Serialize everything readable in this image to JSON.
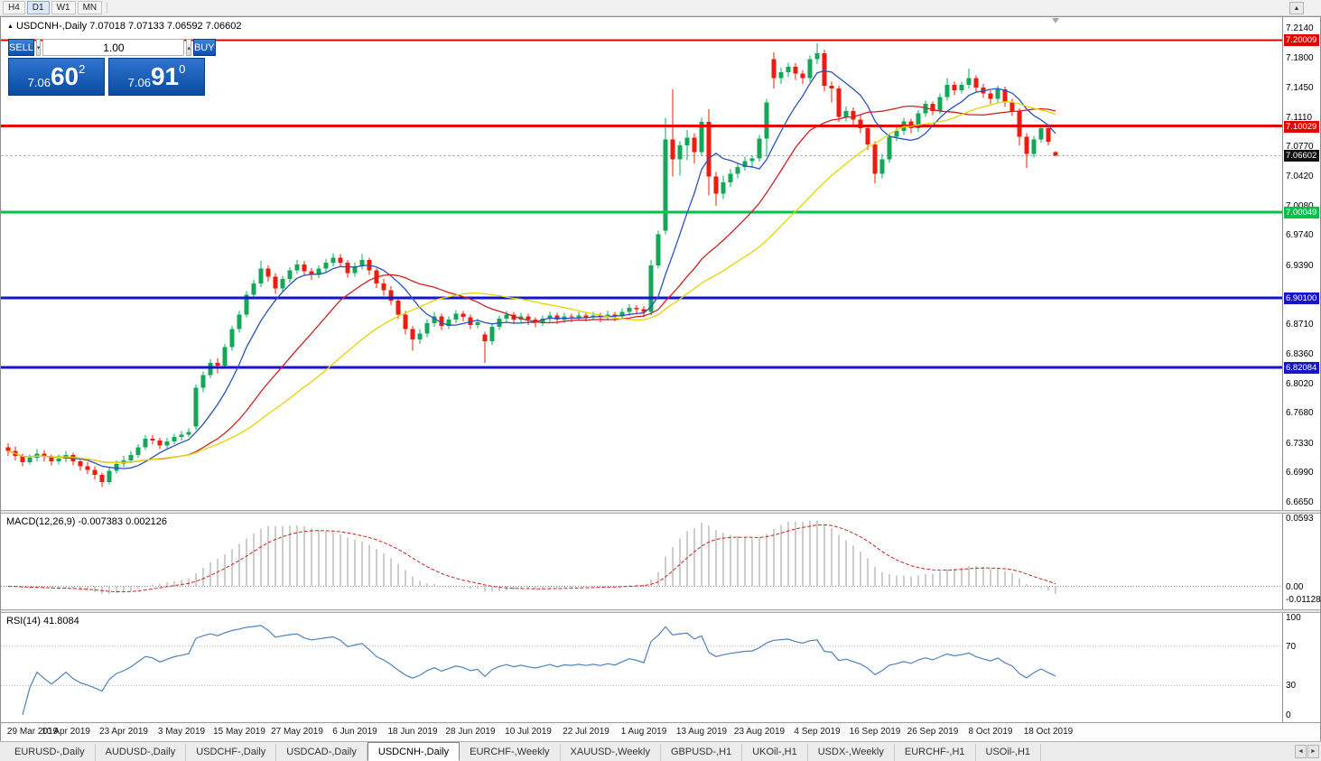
{
  "toolbar": {
    "timeframes": [
      {
        "label": "H4",
        "active": false
      },
      {
        "label": "D1",
        "active": true
      },
      {
        "label": "W1",
        "active": false
      },
      {
        "label": "MN",
        "active": false
      }
    ],
    "up_button": "▲"
  },
  "chart_header": {
    "marker": "▲",
    "title": "USDCNH-,Daily",
    "ohlc": "7.07018 7.07133 7.06592 7.06602"
  },
  "one_click": {
    "sell_label": "SELL",
    "buy_label": "BUY",
    "volume": "1.00",
    "spin_down": "▾",
    "spin_up": "▴",
    "sell_price": {
      "prefix": "7.06",
      "big": "60",
      "sup": "2"
    },
    "buy_price": {
      "prefix": "7.06",
      "big": "91",
      "sup": "0"
    }
  },
  "price_scale": {
    "ticks": [
      "7.2140",
      "7.1800",
      "7.1450",
      "7.1110",
      "7.0770",
      "7.0420",
      "7.0080",
      "6.9740",
      "6.9390",
      "6.8710",
      "6.8360",
      "6.8020",
      "6.7680",
      "6.7330",
      "6.6990",
      "6.6650"
    ],
    "badges": [
      {
        "text": "7.20009",
        "value": 7.20009,
        "bg": "#e60000",
        "kind": "level"
      },
      {
        "text": "7.10029",
        "value": 7.10029,
        "bg": "#e60000",
        "kind": "level"
      },
      {
        "text": "7.06602",
        "value": 7.06602,
        "bg": "#111111",
        "kind": "current"
      },
      {
        "text": "7.00049",
        "value": 7.00049,
        "bg": "#00c24a",
        "kind": "level"
      },
      {
        "text": "6.90100",
        "value": 6.901,
        "bg": "#1414cc",
        "kind": "level"
      },
      {
        "text": "6.82084",
        "value": 6.82084,
        "bg": "#1414cc",
        "kind": "level"
      }
    ]
  },
  "date_axis": [
    {
      "label": "29 Mar 2019",
      "index": 0
    },
    {
      "label": "10 Apr 2019",
      "index": 8
    },
    {
      "label": "23 Apr 2019",
      "index": 16
    },
    {
      "label": "3 May 2019",
      "index": 24
    },
    {
      "label": "15 May 2019",
      "index": 32
    },
    {
      "label": "27 May 2019",
      "index": 40
    },
    {
      "label": "6 Jun 2019",
      "index": 48
    },
    {
      "label": "18 Jun 2019",
      "index": 56
    },
    {
      "label": "28 Jun 2019",
      "index": 64
    },
    {
      "label": "10 Jul 2019",
      "index": 72
    },
    {
      "label": "22 Jul 2019",
      "index": 80
    },
    {
      "label": "1 Aug 2019",
      "index": 88
    },
    {
      "label": "13 Aug 2019",
      "index": 96
    },
    {
      "label": "23 Aug 2019",
      "index": 104
    },
    {
      "label": "4 Sep 2019",
      "index": 112
    },
    {
      "label": "16 Sep 2019",
      "index": 120
    },
    {
      "label": "26 Sep 2019",
      "index": 128
    },
    {
      "label": "8 Oct 2019",
      "index": 136
    },
    {
      "label": "18 Oct 2019",
      "index": 144
    }
  ],
  "tabs": {
    "items": [
      {
        "label": "EURUSD-,Daily",
        "active": false
      },
      {
        "label": "AUDUSD-,Daily",
        "active": false
      },
      {
        "label": "USDCHF-,Daily",
        "active": false
      },
      {
        "label": "USDCAD-,Daily",
        "active": false
      },
      {
        "label": "USDCNH-,Daily",
        "active": true
      },
      {
        "label": "EURCHF-,Weekly",
        "active": false
      },
      {
        "label": "XAUUSD-,Weekly",
        "active": false
      },
      {
        "label": "GBPUSD-,H1",
        "active": false
      },
      {
        "label": "UKOil-,H1",
        "active": false
      },
      {
        "label": "USDX-,Weekly",
        "active": false
      },
      {
        "label": "EURCHF-,H1",
        "active": false
      },
      {
        "label": "USOil-,H1",
        "active": false
      }
    ],
    "scroll_left": "◄",
    "scroll_right": "►"
  },
  "chart_data": {
    "type": "candlestick",
    "symbol": "USDCNH-",
    "timeframe": "Daily",
    "ohlc_current": {
      "open": 7.07018,
      "high": 7.07133,
      "low": 7.06592,
      "close": 7.06602
    },
    "price_range": {
      "top": 7.2266,
      "bottom": 6.6554
    },
    "bull_color": "#0fa958",
    "bear_color": "#ee1c0c",
    "bid_line": {
      "price": 7.06602,
      "color": "#b8b8b8"
    },
    "levels": [
      {
        "price": 7.20009,
        "color": "#e60000",
        "width": 2
      },
      {
        "price": 7.10029,
        "color": "#e60000",
        "width": 3
      },
      {
        "price": 7.00049,
        "color": "#00c24a",
        "width": 3
      },
      {
        "price": 6.901,
        "color": "#1414cc",
        "width": 3
      },
      {
        "price": 6.82084,
        "color": "#1414cc",
        "width": 3
      }
    ],
    "moving_averages": [
      {
        "period": 8,
        "color": "#2a52be"
      },
      {
        "period": 21,
        "color": "#d02020"
      },
      {
        "period": 34,
        "color": "#e6d500"
      }
    ],
    "indicators": {
      "macd": {
        "label": "MACD(12,26,9)",
        "values_text": "-0.007383 0.002126",
        "fast": 12,
        "slow": 26,
        "signal": 9,
        "range": {
          "max": 0.0593,
          "min": -0.011289
        },
        "axis": [
          {
            "text": "0.0593",
            "v": 0.0593
          },
          {
            "text": "0.00",
            "v": 0
          },
          {
            "text": "-0.011289",
            "v": -0.011289
          }
        ],
        "hist_color": "#9e9e9e",
        "signal_color": "#d02020"
      },
      "rsi": {
        "label": "RSI(14)",
        "value_text": "41.8084",
        "period": 14,
        "levels": [
          70,
          30
        ],
        "axis": [
          {
            "text": "100",
            "v": 100
          },
          {
            "text": "70",
            "v": 70
          },
          {
            "text": "30",
            "v": 30
          },
          {
            "text": "0",
            "v": 0
          }
        ],
        "color": "#4f81bd"
      }
    },
    "candles": [
      [
        6.728,
        6.733,
        6.718,
        6.724
      ],
      [
        6.724,
        6.729,
        6.713,
        6.718
      ],
      [
        6.718,
        6.721,
        6.706,
        6.711
      ],
      [
        6.711,
        6.72,
        6.708,
        6.716
      ],
      [
        6.716,
        6.726,
        6.712,
        6.721
      ],
      [
        6.721,
        6.725,
        6.712,
        6.717
      ],
      [
        6.717,
        6.72,
        6.707,
        6.712
      ],
      [
        6.712,
        6.72,
        6.708,
        6.715
      ],
      [
        6.715,
        6.724,
        6.711,
        6.719
      ],
      [
        6.719,
        6.722,
        6.707,
        6.712
      ],
      [
        6.712,
        6.716,
        6.701,
        6.706
      ],
      [
        6.706,
        6.711,
        6.697,
        6.702
      ],
      [
        6.702,
        6.706,
        6.691,
        6.696
      ],
      [
        6.696,
        6.699,
        6.682,
        6.688
      ],
      [
        6.688,
        6.705,
        6.685,
        6.701
      ],
      [
        6.701,
        6.713,
        6.698,
        6.709
      ],
      [
        6.709,
        6.718,
        6.705,
        6.713
      ],
      [
        6.713,
        6.724,
        6.71,
        6.719
      ],
      [
        6.719,
        6.732,
        6.716,
        6.728
      ],
      [
        6.728,
        6.742,
        6.725,
        6.738
      ],
      [
        6.738,
        6.742,
        6.731,
        6.736
      ],
      [
        6.736,
        6.739,
        6.726,
        6.73
      ],
      [
        6.73,
        6.739,
        6.727,
        6.735
      ],
      [
        6.735,
        6.744,
        6.732,
        6.74
      ],
      [
        6.74,
        6.747,
        6.736,
        6.743
      ],
      [
        6.743,
        6.75,
        6.74,
        6.746
      ],
      [
        6.752,
        6.801,
        6.748,
        6.797
      ],
      [
        6.797,
        6.816,
        6.792,
        6.812
      ],
      [
        6.812,
        6.83,
        6.808,
        6.826
      ],
      [
        6.826,
        6.831,
        6.814,
        6.823
      ],
      [
        6.823,
        6.848,
        6.819,
        6.844
      ],
      [
        6.844,
        6.869,
        6.84,
        6.865
      ],
      [
        6.865,
        6.886,
        6.861,
        6.882
      ],
      [
        6.882,
        6.909,
        6.879,
        6.905
      ],
      [
        6.905,
        6.922,
        6.9,
        6.918
      ],
      [
        6.918,
        6.944,
        6.914,
        6.935
      ],
      [
        6.935,
        6.939,
        6.92,
        6.926
      ],
      [
        6.926,
        6.93,
        6.906,
        6.912
      ],
      [
        6.912,
        6.927,
        6.908,
        6.923
      ],
      [
        6.923,
        6.937,
        6.919,
        6.933
      ],
      [
        6.933,
        6.945,
        6.929,
        6.94
      ],
      [
        6.94,
        6.944,
        6.927,
        6.932
      ],
      [
        6.932,
        6.936,
        6.922,
        6.928
      ],
      [
        6.928,
        6.939,
        6.924,
        6.935
      ],
      [
        6.935,
        6.946,
        6.931,
        6.942
      ],
      [
        6.942,
        6.953,
        6.938,
        6.948
      ],
      [
        6.948,
        6.952,
        6.937,
        6.942
      ],
      [
        6.942,
        6.945,
        6.925,
        6.93
      ],
      [
        6.93,
        6.942,
        6.926,
        6.938
      ],
      [
        6.938,
        6.952,
        6.934,
        6.945
      ],
      [
        6.945,
        6.948,
        6.928,
        6.933
      ],
      [
        6.933,
        6.936,
        6.913,
        6.918
      ],
      [
        6.918,
        6.923,
        6.904,
        6.91
      ],
      [
        6.91,
        6.915,
        6.893,
        6.898
      ],
      [
        6.898,
        6.902,
        6.877,
        6.882
      ],
      [
        6.882,
        6.886,
        6.859,
        6.865
      ],
      [
        6.865,
        6.869,
        6.84,
        6.853
      ],
      [
        6.853,
        6.865,
        6.848,
        6.86
      ],
      [
        6.86,
        6.876,
        6.856,
        6.872
      ],
      [
        6.872,
        6.885,
        6.868,
        6.88
      ],
      [
        6.88,
        6.883,
        6.864,
        6.869
      ],
      [
        6.869,
        6.88,
        6.865,
        6.876
      ],
      [
        6.876,
        6.887,
        6.872,
        6.883
      ],
      [
        6.883,
        6.886,
        6.874,
        6.879
      ],
      [
        6.879,
        6.882,
        6.865,
        6.87
      ],
      [
        6.87,
        6.877,
        6.866,
        6.873
      ],
      [
        6.859,
        6.862,
        6.826,
        6.851
      ],
      [
        6.851,
        6.872,
        6.847,
        6.868
      ],
      [
        6.868,
        6.881,
        6.864,
        6.877
      ],
      [
        6.877,
        6.886,
        6.873,
        6.882
      ],
      [
        6.882,
        6.885,
        6.871,
        6.876
      ],
      [
        6.876,
        6.884,
        6.872,
        6.88
      ],
      [
        6.88,
        6.883,
        6.87,
        6.876
      ],
      [
        6.876,
        6.879,
        6.867,
        6.873
      ],
      [
        6.873,
        6.881,
        6.869,
        6.877
      ],
      [
        6.877,
        6.885,
        6.873,
        6.881
      ],
      [
        6.881,
        6.884,
        6.871,
        6.876
      ],
      [
        6.876,
        6.884,
        6.872,
        6.88
      ],
      [
        6.88,
        6.883,
        6.873,
        6.879
      ],
      [
        6.879,
        6.885,
        6.875,
        6.881
      ],
      [
        6.881,
        6.884,
        6.874,
        6.879
      ],
      [
        6.879,
        6.885,
        6.875,
        6.881
      ],
      [
        6.881,
        6.884,
        6.873,
        6.879
      ],
      [
        6.879,
        6.886,
        6.875,
        6.882
      ],
      [
        6.882,
        6.885,
        6.874,
        6.88
      ],
      [
        6.88,
        6.889,
        6.876,
        6.885
      ],
      [
        6.885,
        6.894,
        6.881,
        6.89
      ],
      [
        6.89,
        6.893,
        6.882,
        6.888
      ],
      [
        6.888,
        6.892,
        6.879,
        6.885
      ],
      [
        6.885,
        6.945,
        6.881,
        6.939
      ],
      [
        6.939,
        6.979,
        6.935,
        6.975
      ],
      [
        6.979,
        7.11,
        6.975,
        7.085
      ],
      [
        7.085,
        7.143,
        7.042,
        7.062
      ],
      [
        7.062,
        7.083,
        7.043,
        7.078
      ],
      [
        7.078,
        7.096,
        7.061,
        7.087
      ],
      [
        7.087,
        7.092,
        7.057,
        7.07
      ],
      [
        7.07,
        7.11,
        7.066,
        7.105
      ],
      [
        7.105,
        7.12,
        7.02,
        7.042
      ],
      [
        7.042,
        7.047,
        7.008,
        7.022
      ],
      [
        7.022,
        7.043,
        7.016,
        7.035
      ],
      [
        7.035,
        7.051,
        7.03,
        7.045
      ],
      [
        7.045,
        7.058,
        7.04,
        7.053
      ],
      [
        7.053,
        7.065,
        7.049,
        7.06
      ],
      [
        7.06,
        7.066,
        7.052,
        7.063
      ],
      [
        7.063,
        7.09,
        7.059,
        7.086
      ],
      [
        7.086,
        7.132,
        7.065,
        7.128
      ],
      [
        7.178,
        7.186,
        7.144,
        7.156
      ],
      [
        7.156,
        7.168,
        7.149,
        7.163
      ],
      [
        7.163,
        7.174,
        7.157,
        7.169
      ],
      [
        7.169,
        7.173,
        7.154,
        7.161
      ],
      [
        7.161,
        7.165,
        7.149,
        7.156
      ],
      [
        7.156,
        7.182,
        7.152,
        7.178
      ],
      [
        7.178,
        7.1965,
        7.172,
        7.185
      ],
      [
        7.185,
        7.189,
        7.141,
        7.147
      ],
      [
        7.147,
        7.152,
        7.128,
        7.144
      ],
      [
        7.144,
        7.147,
        7.105,
        7.111
      ],
      [
        7.111,
        7.123,
        7.106,
        7.118
      ],
      [
        7.118,
        7.122,
        7.102,
        7.108
      ],
      [
        7.108,
        7.113,
        7.092,
        7.098
      ],
      [
        7.098,
        7.102,
        7.073,
        7.079
      ],
      [
        7.079,
        7.083,
        7.034,
        7.045
      ],
      [
        7.045,
        7.068,
        7.04,
        7.062
      ],
      [
        7.062,
        7.092,
        7.058,
        7.088
      ],
      [
        7.088,
        7.099,
        7.083,
        7.095
      ],
      [
        7.095,
        7.11,
        7.09,
        7.106
      ],
      [
        7.106,
        7.109,
        7.092,
        7.098
      ],
      [
        7.098,
        7.119,
        7.094,
        7.115
      ],
      [
        7.115,
        7.13,
        7.111,
        7.126
      ],
      [
        7.126,
        7.129,
        7.113,
        7.118
      ],
      [
        7.118,
        7.138,
        7.114,
        7.134
      ],
      [
        7.134,
        7.156,
        7.13,
        7.148
      ],
      [
        7.148,
        7.152,
        7.136,
        7.142
      ],
      [
        7.142,
        7.152,
        7.138,
        7.148
      ],
      [
        7.148,
        7.167,
        7.144,
        7.156
      ],
      [
        7.156,
        7.159,
        7.14,
        7.145
      ],
      [
        7.145,
        7.149,
        7.133,
        7.138
      ],
      [
        7.138,
        7.142,
        7.126,
        7.132
      ],
      [
        7.132,
        7.147,
        7.128,
        7.143
      ],
      [
        7.143,
        7.146,
        7.123,
        7.128
      ],
      [
        7.128,
        7.132,
        7.112,
        7.118
      ],
      [
        7.118,
        7.121,
        7.078,
        7.088
      ],
      [
        7.088,
        7.092,
        7.052,
        7.068
      ],
      [
        7.068,
        7.089,
        7.064,
        7.085
      ],
      [
        7.085,
        7.101,
        7.081,
        7.098
      ],
      [
        7.098,
        7.101,
        7.078,
        7.082
      ],
      [
        7.07018,
        7.07133,
        7.06592,
        7.06602
      ]
    ]
  }
}
